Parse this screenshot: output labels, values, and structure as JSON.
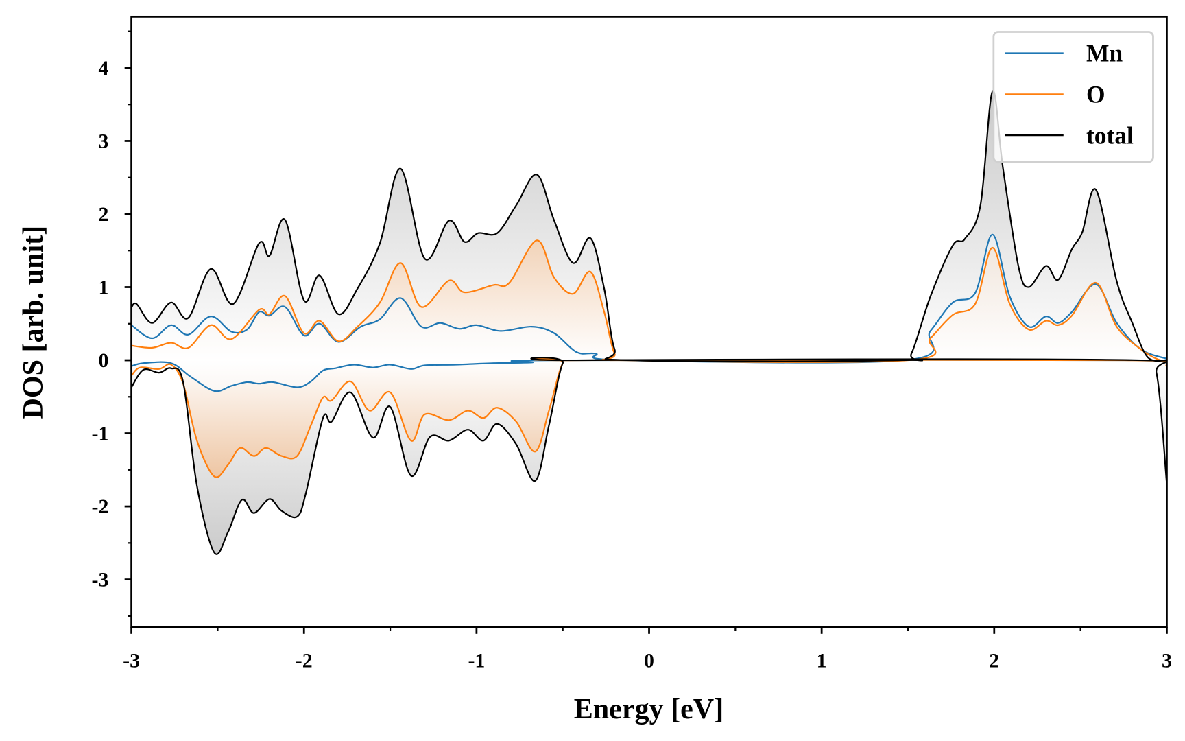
{
  "chart_data": {
    "type": "line",
    "title": "",
    "xlabel": "Energy [eV]",
    "ylabel": "DOS [arb. unit]",
    "xlim": [
      -3,
      3
    ],
    "ylim": [
      -3.65,
      4.7
    ],
    "xticks": [
      -3,
      -2,
      -1,
      0,
      1,
      2,
      3
    ],
    "xtick_labels": [
      "-3",
      "-2",
      "-1",
      "0",
      "1",
      "2",
      "3"
    ],
    "yticks": [
      -3,
      -2,
      -1,
      0,
      1,
      2,
      3,
      4
    ],
    "ytick_labels": [
      "-3",
      "-2",
      "-1",
      "0",
      "1",
      "2",
      "3",
      "4"
    ],
    "grid": false,
    "legend_position": "top-right",
    "series": [
      {
        "name": "Mn",
        "color": "#1f77b4",
        "fill": "#dbe6ef",
        "up": [
          [
            -3,
            0.48
          ],
          [
            -2.88,
            0.3
          ],
          [
            -2.77,
            0.48
          ],
          [
            -2.67,
            0.35
          ],
          [
            -2.54,
            0.6
          ],
          [
            -2.42,
            0.39
          ],
          [
            -2.33,
            0.42
          ],
          [
            -2.26,
            0.66
          ],
          [
            -2.2,
            0.61
          ],
          [
            -2.11,
            0.73
          ],
          [
            -2.0,
            0.34
          ],
          [
            -1.91,
            0.5
          ],
          [
            -1.8,
            0.25
          ],
          [
            -1.67,
            0.46
          ],
          [
            -1.56,
            0.56
          ],
          [
            -1.44,
            0.85
          ],
          [
            -1.32,
            0.46
          ],
          [
            -1.21,
            0.51
          ],
          [
            -1.1,
            0.43
          ],
          [
            -1.0,
            0.48
          ],
          [
            -0.86,
            0.4
          ],
          [
            -0.68,
            0.46
          ],
          [
            -0.55,
            0.37
          ],
          [
            -0.42,
            0.11
          ],
          [
            -0.31,
            0.09
          ],
          [
            -0.15,
            0.0
          ],
          [
            1.48,
            0.0
          ],
          [
            1.63,
            0.4
          ],
          [
            1.76,
            0.79
          ],
          [
            1.89,
            0.92
          ],
          [
            1.99,
            1.72
          ],
          [
            2.09,
            0.87
          ],
          [
            2.2,
            0.46
          ],
          [
            2.3,
            0.6
          ],
          [
            2.37,
            0.51
          ],
          [
            2.45,
            0.66
          ],
          [
            2.59,
            1.04
          ],
          [
            2.71,
            0.51
          ],
          [
            2.85,
            0.15
          ],
          [
            3.0,
            0.02
          ]
        ],
        "down": [
          [
            -3,
            -0.08
          ],
          [
            -2.93,
            -0.04
          ],
          [
            -2.77,
            -0.04
          ],
          [
            -2.66,
            -0.22
          ],
          [
            -2.52,
            -0.42
          ],
          [
            -2.42,
            -0.35
          ],
          [
            -2.33,
            -0.3
          ],
          [
            -2.26,
            -0.32
          ],
          [
            -2.18,
            -0.3
          ],
          [
            -2.04,
            -0.37
          ],
          [
            -1.96,
            -0.29
          ],
          [
            -1.89,
            -0.14
          ],
          [
            -1.82,
            -0.11
          ],
          [
            -1.71,
            -0.06
          ],
          [
            -1.6,
            -0.1
          ],
          [
            -1.5,
            -0.06
          ],
          [
            -1.38,
            -0.12
          ],
          [
            -1.3,
            -0.07
          ],
          [
            -1.12,
            -0.06
          ],
          [
            -0.9,
            -0.04
          ],
          [
            -0.68,
            -0.03
          ],
          [
            -0.5,
            0.0
          ],
          [
            2.85,
            0.0
          ],
          [
            3.0,
            -0.05
          ]
        ]
      },
      {
        "name": "O",
        "color": "#ff7f0e",
        "fill": "#e0914d",
        "up": [
          [
            -3,
            0.2
          ],
          [
            -2.88,
            0.17
          ],
          [
            -2.77,
            0.24
          ],
          [
            -2.67,
            0.17
          ],
          [
            -2.54,
            0.48
          ],
          [
            -2.42,
            0.29
          ],
          [
            -2.26,
            0.69
          ],
          [
            -2.2,
            0.63
          ],
          [
            -2.11,
            0.88
          ],
          [
            -2.0,
            0.37
          ],
          [
            -1.91,
            0.54
          ],
          [
            -1.8,
            0.26
          ],
          [
            -1.69,
            0.46
          ],
          [
            -1.56,
            0.79
          ],
          [
            -1.44,
            1.33
          ],
          [
            -1.32,
            0.73
          ],
          [
            -1.16,
            1.09
          ],
          [
            -1.07,
            0.93
          ],
          [
            -0.9,
            1.03
          ],
          [
            -0.81,
            1.06
          ],
          [
            -0.65,
            1.64
          ],
          [
            -0.55,
            1.13
          ],
          [
            -0.44,
            0.91
          ],
          [
            -0.34,
            1.21
          ],
          [
            -0.26,
            0.66
          ],
          [
            -0.2,
            0.09
          ],
          [
            -0.13,
            0.0
          ],
          [
            1.5,
            0.0
          ],
          [
            1.63,
            0.3
          ],
          [
            1.76,
            0.62
          ],
          [
            1.89,
            0.77
          ],
          [
            1.99,
            1.54
          ],
          [
            2.09,
            0.77
          ],
          [
            2.2,
            0.42
          ],
          [
            2.3,
            0.54
          ],
          [
            2.37,
            0.48
          ],
          [
            2.45,
            0.61
          ],
          [
            2.59,
            1.06
          ],
          [
            2.71,
            0.46
          ],
          [
            2.85,
            0.15
          ],
          [
            2.95,
            0.01
          ],
          [
            3.0,
            0.0
          ]
        ],
        "down": [
          [
            -3,
            -0.21
          ],
          [
            -2.95,
            -0.1
          ],
          [
            -2.84,
            -0.12
          ],
          [
            -2.77,
            -0.06
          ],
          [
            -2.7,
            -0.32
          ],
          [
            -2.62,
            -1.1
          ],
          [
            -2.52,
            -1.59
          ],
          [
            -2.44,
            -1.43
          ],
          [
            -2.37,
            -1.2
          ],
          [
            -2.29,
            -1.31
          ],
          [
            -2.22,
            -1.2
          ],
          [
            -2.13,
            -1.31
          ],
          [
            -2.04,
            -1.31
          ],
          [
            -1.96,
            -0.89
          ],
          [
            -1.89,
            -0.51
          ],
          [
            -1.84,
            -0.55
          ],
          [
            -1.73,
            -0.29
          ],
          [
            -1.62,
            -0.69
          ],
          [
            -1.5,
            -0.44
          ],
          [
            -1.38,
            -1.1
          ],
          [
            -1.3,
            -0.74
          ],
          [
            -1.16,
            -0.82
          ],
          [
            -1.05,
            -0.69
          ],
          [
            -0.96,
            -0.79
          ],
          [
            -0.88,
            -0.65
          ],
          [
            -0.77,
            -0.84
          ],
          [
            -0.66,
            -1.25
          ],
          [
            -0.58,
            -0.69
          ],
          [
            -0.5,
            -0.04
          ],
          [
            -0.42,
            0.0
          ],
          [
            2.75,
            0.0
          ],
          [
            3.0,
            -0.07
          ]
        ]
      },
      {
        "name": "total",
        "color": "#000000",
        "fill": "#c4c4c4",
        "up": [
          [
            -3,
            0.72
          ],
          [
            -2.97,
            0.77
          ],
          [
            -2.88,
            0.51
          ],
          [
            -2.77,
            0.79
          ],
          [
            -2.67,
            0.58
          ],
          [
            -2.54,
            1.25
          ],
          [
            -2.41,
            0.77
          ],
          [
            -2.26,
            1.6
          ],
          [
            -2.2,
            1.43
          ],
          [
            -2.11,
            1.92
          ],
          [
            -2.0,
            0.82
          ],
          [
            -1.91,
            1.16
          ],
          [
            -1.8,
            0.63
          ],
          [
            -1.69,
            0.98
          ],
          [
            -1.56,
            1.6
          ],
          [
            -1.44,
            2.62
          ],
          [
            -1.3,
            1.39
          ],
          [
            -1.16,
            1.91
          ],
          [
            -1.07,
            1.62
          ],
          [
            -0.99,
            1.74
          ],
          [
            -0.88,
            1.74
          ],
          [
            -0.77,
            2.12
          ],
          [
            -0.65,
            2.54
          ],
          [
            -0.55,
            1.91
          ],
          [
            -0.44,
            1.33
          ],
          [
            -0.34,
            1.67
          ],
          [
            -0.26,
            0.98
          ],
          [
            -0.2,
            0.15
          ],
          [
            -0.11,
            0.0
          ],
          [
            1.45,
            0.0
          ],
          [
            1.52,
            0.09
          ],
          [
            1.63,
            0.87
          ],
          [
            1.76,
            1.57
          ],
          [
            1.83,
            1.66
          ],
          [
            1.92,
            2.12
          ],
          [
            1.99,
            3.68
          ],
          [
            2.05,
            2.64
          ],
          [
            2.14,
            1.29
          ],
          [
            2.2,
            1.0
          ],
          [
            2.3,
            1.29
          ],
          [
            2.37,
            1.1
          ],
          [
            2.45,
            1.52
          ],
          [
            2.51,
            1.75
          ],
          [
            2.59,
            2.33
          ],
          [
            2.71,
            1.08
          ],
          [
            2.8,
            0.51
          ],
          [
            2.89,
            0.04
          ],
          [
            3.0,
            0.0
          ]
        ],
        "down": [
          [
            -3,
            -0.37
          ],
          [
            -2.93,
            -0.13
          ],
          [
            -2.84,
            -0.17
          ],
          [
            -2.77,
            -0.11
          ],
          [
            -2.7,
            -0.3
          ],
          [
            -2.62,
            -1.72
          ],
          [
            -2.52,
            -2.63
          ],
          [
            -2.44,
            -2.35
          ],
          [
            -2.36,
            -1.91
          ],
          [
            -2.29,
            -2.09
          ],
          [
            -2.2,
            -1.9
          ],
          [
            -2.13,
            -2.06
          ],
          [
            -2.04,
            -2.14
          ],
          [
            -1.99,
            -1.83
          ],
          [
            -1.89,
            -0.79
          ],
          [
            -1.84,
            -0.84
          ],
          [
            -1.73,
            -0.44
          ],
          [
            -1.6,
            -1.06
          ],
          [
            -1.5,
            -0.64
          ],
          [
            -1.38,
            -1.58
          ],
          [
            -1.27,
            -1.05
          ],
          [
            -1.16,
            -1.1
          ],
          [
            -1.05,
            -0.95
          ],
          [
            -0.96,
            -1.1
          ],
          [
            -0.88,
            -0.87
          ],
          [
            -0.77,
            -1.15
          ],
          [
            -0.66,
            -1.65
          ],
          [
            -0.58,
            -0.89
          ],
          [
            -0.5,
            -0.04
          ],
          [
            -0.42,
            0.0
          ],
          [
            2.85,
            0.0
          ],
          [
            2.94,
            -0.17
          ],
          [
            3.0,
            -1.69
          ]
        ]
      }
    ]
  }
}
